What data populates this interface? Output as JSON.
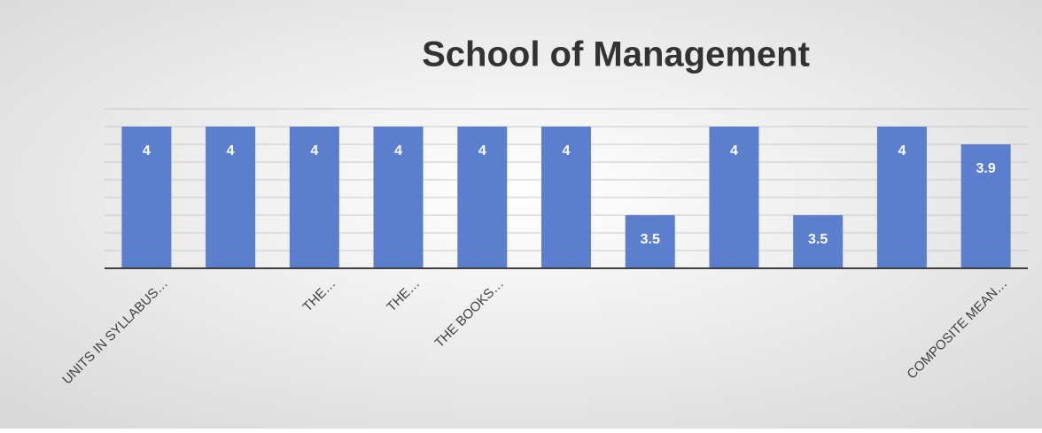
{
  "chart_data": {
    "type": "bar",
    "title": "School of Management",
    "categories": [
      "UNITS IN SYLLABUS…",
      null,
      "THE…",
      "THE…",
      "THE BOOKS…",
      null,
      null,
      null,
      null,
      null,
      "COMPOSITE MEAN…"
    ],
    "values": [
      4,
      4,
      4,
      4,
      4,
      4,
      3.5,
      4,
      3.5,
      4,
      3.9
    ],
    "color": "#5b7fcc",
    "ylim": [
      3.2,
      4.1
    ],
    "yticks": [
      3.2,
      3.3,
      3.4,
      3.5,
      3.6,
      3.7,
      3.8,
      3.9,
      4.0,
      4.1
    ],
    "grid": true
  }
}
